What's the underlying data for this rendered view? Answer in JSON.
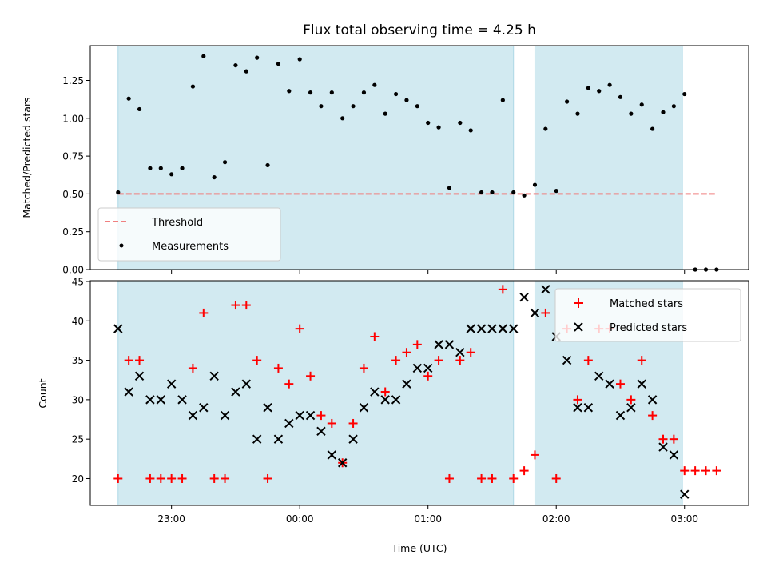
{
  "title": "Flux total observing time = 4.25 h",
  "colors": {
    "shade": "#add8e6",
    "threshold": "#f08080",
    "measurement": "#000000",
    "matched": "#ff0000",
    "predicted": "#000000",
    "background": "#ffffff"
  },
  "chart_data": [
    {
      "type": "scatter",
      "ylabel": "Matched/Predicted stars",
      "ylim": [
        0,
        1.48
      ],
      "y_ticks": [
        {
          "value": 0.0,
          "label": "0.00"
        },
        {
          "value": 0.25,
          "label": "0.25"
        },
        {
          "value": 0.5,
          "label": "0.50"
        },
        {
          "value": 0.75,
          "label": "0.75"
        },
        {
          "value": 1.0,
          "label": "1.00"
        },
        {
          "value": 1.25,
          "label": "1.25"
        }
      ],
      "shaded_spans": [
        [
          "22:35",
          "01:40"
        ],
        [
          "01:50",
          "02:59"
        ]
      ],
      "threshold": {
        "name": "Threshold",
        "y": 0.5,
        "x": [
          "22:35",
          "03:15"
        ]
      },
      "series": [
        {
          "name": "Measurements",
          "marker": "dot",
          "points": [
            [
              "22:35",
              0.51
            ],
            [
              "22:40",
              1.13
            ],
            [
              "22:45",
              1.06
            ],
            [
              "22:50",
              0.67
            ],
            [
              "22:55",
              0.67
            ],
            [
              "23:00",
              0.63
            ],
            [
              "23:05",
              0.67
            ],
            [
              "23:10",
              1.21
            ],
            [
              "23:15",
              1.41
            ],
            [
              "23:20",
              0.61
            ],
            [
              "23:25",
              0.71
            ],
            [
              "23:30",
              1.35
            ],
            [
              "23:35",
              1.31
            ],
            [
              "23:40",
              1.4
            ],
            [
              "23:45",
              0.69
            ],
            [
              "23:50",
              1.36
            ],
            [
              "23:55",
              1.18
            ],
            [
              "00:00",
              1.39
            ],
            [
              "00:05",
              1.17
            ],
            [
              "00:10",
              1.08
            ],
            [
              "00:15",
              1.17
            ],
            [
              "00:20",
              1.0
            ],
            [
              "00:25",
              1.08
            ],
            [
              "00:30",
              1.17
            ],
            [
              "00:35",
              1.22
            ],
            [
              "00:40",
              1.03
            ],
            [
              "00:45",
              1.16
            ],
            [
              "00:50",
              1.12
            ],
            [
              "00:55",
              1.08
            ],
            [
              "01:00",
              0.97
            ],
            [
              "01:05",
              0.94
            ],
            [
              "01:10",
              0.54
            ],
            [
              "01:15",
              0.97
            ],
            [
              "01:20",
              0.92
            ],
            [
              "01:25",
              0.51
            ],
            [
              "01:30",
              0.51
            ],
            [
              "01:35",
              1.12
            ],
            [
              "01:40",
              0.51
            ],
            [
              "01:45",
              0.49
            ],
            [
              "01:50",
              0.56
            ],
            [
              "01:55",
              0.93
            ],
            [
              "02:00",
              0.52
            ],
            [
              "02:05",
              1.11
            ],
            [
              "02:10",
              1.03
            ],
            [
              "02:15",
              1.2
            ],
            [
              "02:20",
              1.18
            ],
            [
              "02:25",
              1.22
            ],
            [
              "02:30",
              1.14
            ],
            [
              "02:35",
              1.03
            ],
            [
              "02:40",
              1.09
            ],
            [
              "02:45",
              0.93
            ],
            [
              "02:50",
              1.04
            ],
            [
              "02:55",
              1.08
            ],
            [
              "03:00",
              1.16
            ],
            [
              "03:05",
              0.0
            ],
            [
              "03:10",
              0.0
            ],
            [
              "03:15",
              0.0
            ]
          ]
        }
      ],
      "legend": {
        "position": "lower-left",
        "entries": [
          "Threshold",
          "Measurements"
        ]
      }
    },
    {
      "type": "scatter",
      "xlabel": "Time (UTC)",
      "ylabel": "Count",
      "ylim": [
        16.6,
        45.1
      ],
      "y_ticks": [
        {
          "value": 20,
          "label": "20"
        },
        {
          "value": 25,
          "label": "25"
        },
        {
          "value": 30,
          "label": "30"
        },
        {
          "value": 35,
          "label": "35"
        },
        {
          "value": 40,
          "label": "40"
        },
        {
          "value": 45,
          "label": "45"
        }
      ],
      "x_range": [
        "22:22",
        "03:30"
      ],
      "x_ticks": [
        {
          "value": "23:00",
          "label": "23:00"
        },
        {
          "value": "00:00",
          "label": "00:00"
        },
        {
          "value": "01:00",
          "label": "01:00"
        },
        {
          "value": "02:00",
          "label": "02:00"
        },
        {
          "value": "03:00",
          "label": "03:00"
        }
      ],
      "shaded_spans": [
        [
          "22:35",
          "01:40"
        ],
        [
          "01:50",
          "02:59"
        ]
      ],
      "series": [
        {
          "name": "Matched stars",
          "marker": "plus",
          "points": [
            [
              "22:35",
              20
            ],
            [
              "22:40",
              35
            ],
            [
              "22:45",
              35
            ],
            [
              "22:50",
              20
            ],
            [
              "22:55",
              20
            ],
            [
              "23:00",
              20
            ],
            [
              "23:05",
              20
            ],
            [
              "23:10",
              34
            ],
            [
              "23:15",
              41
            ],
            [
              "23:20",
              20
            ],
            [
              "23:25",
              20
            ],
            [
              "23:30",
              42
            ],
            [
              "23:35",
              42
            ],
            [
              "23:40",
              35
            ],
            [
              "23:45",
              20
            ],
            [
              "23:50",
              34
            ],
            [
              "23:55",
              32
            ],
            [
              "00:00",
              39
            ],
            [
              "00:05",
              33
            ],
            [
              "00:10",
              28
            ],
            [
              "00:15",
              27
            ],
            [
              "00:20",
              22
            ],
            [
              "00:25",
              27
            ],
            [
              "00:30",
              34
            ],
            [
              "00:35",
              38
            ],
            [
              "00:40",
              31
            ],
            [
              "00:45",
              35
            ],
            [
              "00:50",
              36
            ],
            [
              "00:55",
              37
            ],
            [
              "01:00",
              33
            ],
            [
              "01:05",
              35
            ],
            [
              "01:10",
              20
            ],
            [
              "01:15",
              35
            ],
            [
              "01:20",
              36
            ],
            [
              "01:25",
              20
            ],
            [
              "01:30",
              20
            ],
            [
              "01:35",
              44
            ],
            [
              "01:40",
              20
            ],
            [
              "01:45",
              21
            ],
            [
              "01:50",
              23
            ],
            [
              "01:55",
              41
            ],
            [
              "02:00",
              20
            ],
            [
              "02:05",
              39
            ],
            [
              "02:10",
              30
            ],
            [
              "02:15",
              35
            ],
            [
              "02:20",
              39
            ],
            [
              "02:25",
              39
            ],
            [
              "02:30",
              32
            ],
            [
              "02:35",
              30
            ],
            [
              "02:40",
              35
            ],
            [
              "02:45",
              28
            ],
            [
              "02:50",
              25
            ],
            [
              "02:55",
              25
            ],
            [
              "03:00",
              21
            ],
            [
              "03:05",
              21
            ],
            [
              "03:10",
              21
            ],
            [
              "03:15",
              21
            ]
          ]
        },
        {
          "name": "Predicted stars",
          "marker": "x",
          "points": [
            [
              "22:35",
              39
            ],
            [
              "22:40",
              31
            ],
            [
              "22:45",
              33
            ],
            [
              "22:50",
              30
            ],
            [
              "22:55",
              30
            ],
            [
              "23:00",
              32
            ],
            [
              "23:05",
              30
            ],
            [
              "23:10",
              28
            ],
            [
              "23:15",
              29
            ],
            [
              "23:20",
              33
            ],
            [
              "23:25",
              28
            ],
            [
              "23:30",
              31
            ],
            [
              "23:35",
              32
            ],
            [
              "23:40",
              25
            ],
            [
              "23:45",
              29
            ],
            [
              "23:50",
              25
            ],
            [
              "23:55",
              27
            ],
            [
              "00:00",
              28
            ],
            [
              "00:05",
              28
            ],
            [
              "00:10",
              26
            ],
            [
              "00:15",
              23
            ],
            [
              "00:20",
              22
            ],
            [
              "00:25",
              25
            ],
            [
              "00:30",
              29
            ],
            [
              "00:35",
              31
            ],
            [
              "00:40",
              30
            ],
            [
              "00:45",
              30
            ],
            [
              "00:50",
              32
            ],
            [
              "00:55",
              34
            ],
            [
              "01:00",
              34
            ],
            [
              "01:05",
              37
            ],
            [
              "01:10",
              37
            ],
            [
              "01:15",
              36
            ],
            [
              "01:20",
              39
            ],
            [
              "01:25",
              39
            ],
            [
              "01:30",
              39
            ],
            [
              "01:35",
              39
            ],
            [
              "01:40",
              39
            ],
            [
              "01:45",
              43
            ],
            [
              "01:50",
              41
            ],
            [
              "01:55",
              44
            ],
            [
              "02:00",
              38
            ],
            [
              "02:05",
              35
            ],
            [
              "02:10",
              29
            ],
            [
              "02:15",
              29
            ],
            [
              "02:20",
              33
            ],
            [
              "02:25",
              32
            ],
            [
              "02:30",
              28
            ],
            [
              "02:35",
              29
            ],
            [
              "02:40",
              32
            ],
            [
              "02:45",
              30
            ],
            [
              "02:50",
              24
            ],
            [
              "02:55",
              23
            ],
            [
              "03:00",
              18
            ]
          ]
        }
      ],
      "legend": {
        "position": "upper-right",
        "entries": [
          "Matched stars",
          "Predicted stars"
        ]
      }
    }
  ]
}
